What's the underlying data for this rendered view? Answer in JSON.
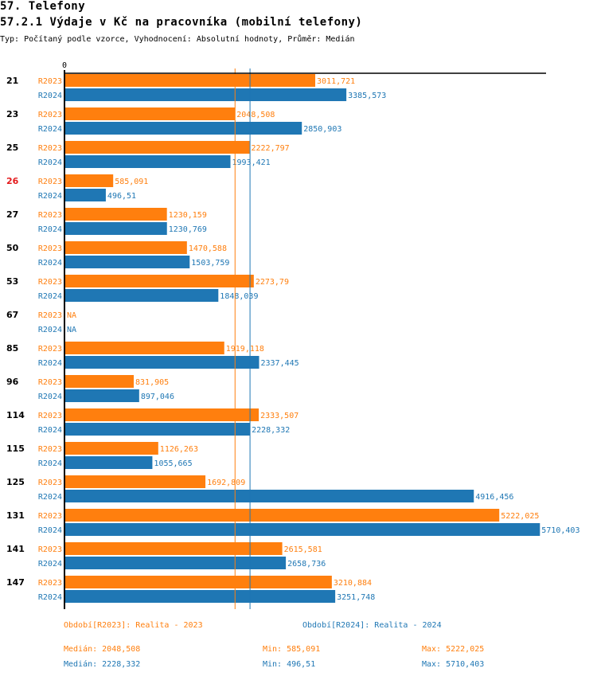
{
  "header": {
    "title": "57. Telefony",
    "chart_title": "57.2.1 Výdaje v Kč na pracovníka (mobilní telefony)",
    "subtitle": "Typ: Počítaný podle vzorce, Vyhodnocení: Absolutní hodnoty, Průměr: Medián"
  },
  "colors": {
    "R2023": "#ff7f0e",
    "R2024": "#1f77b4",
    "highlight": "#e41a1c",
    "axis": "#000000"
  },
  "chart_data": {
    "type": "bar",
    "orientation": "horizontal",
    "title": "57.2.1 Výdaje v Kč na pracovníka (mobilní telefony)",
    "xlabel": "",
    "ylabel": "",
    "x_tick_labels": [
      "0"
    ],
    "xlim": [
      0,
      6100
    ],
    "grid": false,
    "categories": [
      "21",
      "23",
      "25",
      "26",
      "27",
      "50",
      "53",
      "67",
      "85",
      "96",
      "114",
      "115",
      "125",
      "131",
      "141",
      "147"
    ],
    "highlighted_category": "26",
    "series": [
      {
        "name": "R2023",
        "values": [
          3011.721,
          2048.508,
          2222.797,
          585.091,
          1230.159,
          1470.588,
          2273.79,
          null,
          1919.118,
          831.905,
          2333.507,
          1126.263,
          1692.809,
          5222.025,
          2615.581,
          3210.884
        ],
        "labels": [
          "3011,721",
          "2048,508",
          "2222,797",
          "585,091",
          "1230,159",
          "1470,588",
          "2273,79",
          "NA",
          "1919,118",
          "831,905",
          "2333,507",
          "1126,263",
          "1692,809",
          "5222,025",
          "2615,581",
          "3210,884"
        ],
        "median": 2048.508
      },
      {
        "name": "R2024",
        "values": [
          3385.573,
          2850.903,
          1993.421,
          496.51,
          1230.769,
          1503.759,
          1848.039,
          null,
          2337.445,
          897.046,
          2228.332,
          1055.665,
          4916.456,
          5710.403,
          2658.736,
          3251.748
        ],
        "labels": [
          "3385,573",
          "2850,903",
          "1993,421",
          "496,51",
          "1230,769",
          "1503,759",
          "1848,039",
          "NA",
          "2337,445",
          "897,046",
          "2228,332",
          "1055,665",
          "4916,456",
          "5710,403",
          "2658,736",
          "3251,748"
        ],
        "median": 2228.332
      }
    ],
    "reference_lines": [
      {
        "series": "R2023",
        "type": "median",
        "value": 2048.508
      },
      {
        "series": "R2024",
        "type": "median",
        "value": 2228.332
      }
    ]
  },
  "legend": {
    "R2023": "Období[R2023]: Realita - 2023",
    "R2024": "Období[R2024]: Realita - 2024"
  },
  "stats": {
    "R2023": {
      "median": "Medián: 2048,508",
      "min": "Min: 585,091",
      "max": "Max: 5222,025"
    },
    "R2024": {
      "median": "Medián: 2228,332",
      "min": "Min: 496,51",
      "max": "Max: 5710,403"
    }
  }
}
